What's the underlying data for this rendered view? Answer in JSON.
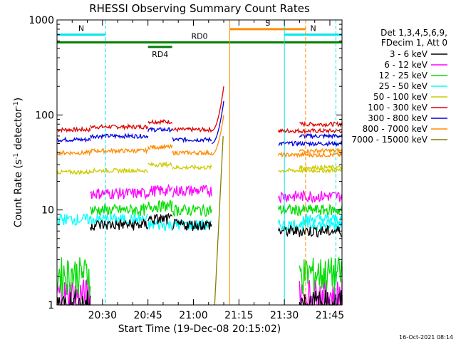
{
  "chart_data": {
    "type": "line",
    "title": "RHESSI Observing Summary Count Rates",
    "xlabel": "Start Time (19-Dec-08 20:15:02)",
    "ylabel_main": "Count Rate (s",
    "ylabel_sup1": "-1",
    "ylabel_mid": " detector",
    "ylabel_sup2": "-1",
    "ylabel_end": ")",
    "y_scale": "log",
    "ylim": [
      1,
      1000
    ],
    "y_ticks": [
      {
        "value": 1,
        "label": "1"
      },
      {
        "value": 10,
        "label": "10"
      },
      {
        "value": 100,
        "label": "100"
      },
      {
        "value": 1000,
        "label": "1000"
      }
    ],
    "xlim_minutes": [
      0,
      94
    ],
    "x_ticks": [
      {
        "minute": 15,
        "label": "20:30"
      },
      {
        "minute": 30,
        "label": "20:45"
      },
      {
        "minute": 45,
        "label": "21:00"
      },
      {
        "minute": 60,
        "label": "21:15"
      },
      {
        "minute": 75,
        "label": "21:30"
      },
      {
        "minute": 90,
        "label": "21:45"
      }
    ],
    "legend_position": "right",
    "legend_header": [
      "Det 1,3,4,5,6,9,",
      "FDecim 1, Att 0"
    ],
    "series": [
      {
        "name": "3 - 6 keV",
        "color": "#000000"
      },
      {
        "name": "6 - 12 keV",
        "color": "#ff00ff"
      },
      {
        "name": "12 - 25 keV",
        "color": "#00dd00"
      },
      {
        "name": "25 - 50 keV",
        "color": "#00ffff"
      },
      {
        "name": "50 - 100 keV",
        "color": "#cccc00"
      },
      {
        "name": "100 - 300 keV",
        "color": "#dd0000"
      },
      {
        "name": "300 - 800 keV",
        "color": "#0000dd"
      },
      {
        "name": "800 - 7000 keV",
        "color": "#ff8c00"
      },
      {
        "name": "7000 - 15000 keV",
        "color": "#808000"
      }
    ],
    "segments": [
      [
        0,
        11,
        6
      ],
      [
        11,
        30,
        11
      ],
      [
        30,
        38,
        10
      ],
      [
        38,
        51,
        5
      ],
      [
        73,
        94,
        16
      ],
      [
        80,
        95,
        7
      ]
    ],
    "levels": [
      {
        "series": 5,
        "values": [
          70,
          75,
          85,
          70,
          68,
          80
        ]
      },
      {
        "series": 6,
        "values": [
          55,
          60,
          70,
          55,
          50,
          60
        ]
      },
      {
        "series": 7,
        "values": [
          40,
          42,
          46,
          40,
          38,
          42
        ]
      },
      {
        "series": 4,
        "values": [
          25,
          26,
          30,
          28,
          26,
          28
        ]
      },
      {
        "series": 1,
        "values": [
          1.3,
          15,
          16,
          16,
          14,
          1.3
        ]
      },
      {
        "series": 2,
        "values": [
          2.2,
          10,
          11,
          10,
          10,
          2.2
        ]
      },
      {
        "series": 3,
        "values": [
          8,
          8,
          7,
          7,
          7,
          8
        ]
      },
      {
        "series": 0,
        "values": [
          1,
          7,
          8,
          7,
          6,
          1
        ]
      }
    ],
    "rise_end_minute": 55,
    "rise_peak": [
      {
        "series": 5,
        "value": 200
      },
      {
        "series": 6,
        "value": 140
      },
      {
        "series": 7,
        "value": 100
      }
    ],
    "flags": [
      {
        "label": "N",
        "color": "#00e5ee",
        "start_minute": 0,
        "end_minute": 16,
        "value": 700
      },
      {
        "label": "N",
        "color": "#00e5ee",
        "start_minute": 75,
        "end_minute": 94,
        "value": 700
      },
      {
        "label": "S",
        "color": "#ff8c00",
        "start_minute": 57,
        "end_minute": 82,
        "value": 800
      },
      {
        "label": "RD0",
        "color": "#008000",
        "start_minute": 0,
        "end_minute": 94,
        "value": 580
      },
      {
        "label": "RD4",
        "color": "#008000",
        "start_minute": 30,
        "end_minute": 38,
        "value": 520
      }
    ],
    "vlines": [
      {
        "minute": 0,
        "color": "#00e5ee",
        "style": "solid"
      },
      {
        "minute": 16,
        "color": "#00e5ee",
        "style": "dashed"
      },
      {
        "minute": 57,
        "color": "#ff8c00",
        "style": "solid"
      },
      {
        "minute": 75,
        "color": "#00e5ee",
        "style": "solid"
      },
      {
        "minute": 82,
        "color": "#ff8c00",
        "style": "dashed"
      },
      {
        "minute": 92,
        "color": "#00e5ee",
        "style": "dashed"
      }
    ],
    "footer_date": "16-Oct-2021 08:14"
  }
}
